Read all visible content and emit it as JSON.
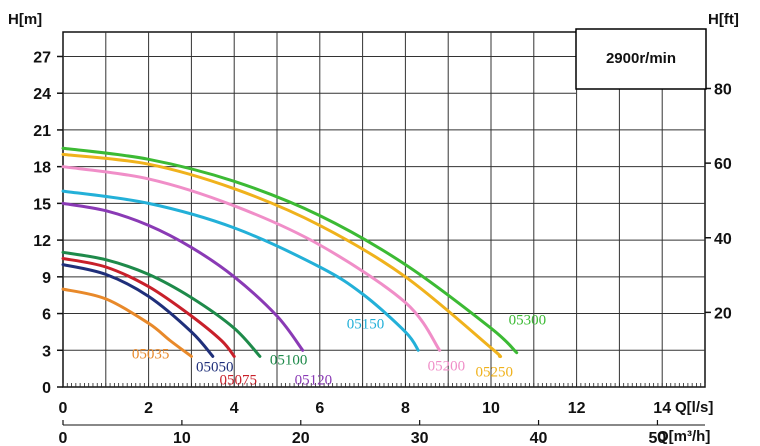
{
  "chart_data": {
    "type": "line",
    "title": "",
    "rpm_label": "2900r/min",
    "ylabel_left": "H[m]",
    "ylabel_right": "H[ft]",
    "xlabel_ls": "Q[l/s]",
    "xlabel_m3h": "Q[m³/h]",
    "xlim": [
      0,
      15
    ],
    "ylim": [
      0,
      29
    ],
    "grid": true,
    "x_ticks_ls": [
      0,
      2,
      4,
      6,
      8,
      10,
      12,
      14
    ],
    "y_ticks_m": [
      0,
      3,
      6,
      9,
      12,
      15,
      18,
      21,
      24,
      27
    ],
    "x_ticks_m3h": [
      0,
      10,
      20,
      30,
      40,
      50
    ],
    "y_ticks_ft": [
      20,
      40,
      60,
      80
    ],
    "series": [
      {
        "name": "05035",
        "color": "#e8892a",
        "x": [
          0,
          1,
          2,
          2.5,
          3
        ],
        "y": [
          8,
          7.2,
          5.2,
          3.8,
          2.5
        ]
      },
      {
        "name": "05050",
        "color": "#1f2f7a",
        "x": [
          0,
          1,
          2,
          3,
          3.5
        ],
        "y": [
          10,
          9.2,
          7.4,
          4.5,
          2.5
        ]
      },
      {
        "name": "05075",
        "color": "#c8202a",
        "x": [
          0,
          1,
          2,
          3,
          3.7,
          4
        ],
        "y": [
          10.5,
          9.8,
          8.2,
          5.8,
          3.8,
          2.5
        ]
      },
      {
        "name": "05100",
        "color": "#1e8a4a",
        "x": [
          0,
          1,
          2,
          3,
          4,
          4.6
        ],
        "y": [
          11,
          10.4,
          9.2,
          7.3,
          4.8,
          2.5
        ]
      },
      {
        "name": "05120",
        "color": "#8a3ab5",
        "x": [
          0,
          1,
          2,
          3,
          4,
          5,
          5.6
        ],
        "y": [
          15,
          14.4,
          13.2,
          11.4,
          9,
          5.8,
          3
        ]
      },
      {
        "name": "05150",
        "color": "#23b0d8",
        "x": [
          0,
          2,
          4,
          6,
          7,
          8,
          8.3
        ],
        "y": [
          16,
          15,
          13,
          9.8,
          7.6,
          4.5,
          3
        ]
      },
      {
        "name": "05200",
        "color": "#f08ec8",
        "x": [
          0,
          2,
          4,
          6,
          8,
          8.8
        ],
        "y": [
          18,
          17,
          14.8,
          11.6,
          6.9,
          3
        ]
      },
      {
        "name": "05250",
        "color": "#f0b21c",
        "x": [
          0,
          2,
          4,
          6,
          8,
          10,
          10.2
        ],
        "y": [
          19,
          18.2,
          16.2,
          13.2,
          9,
          3.2,
          2.5
        ]
      },
      {
        "name": "05300",
        "color": "#3cba34",
        "x": [
          0,
          2,
          4,
          6,
          8,
          10,
          10.6
        ],
        "y": [
          19.5,
          18.6,
          16.8,
          14,
          10,
          4.8,
          2.8
        ]
      }
    ]
  }
}
